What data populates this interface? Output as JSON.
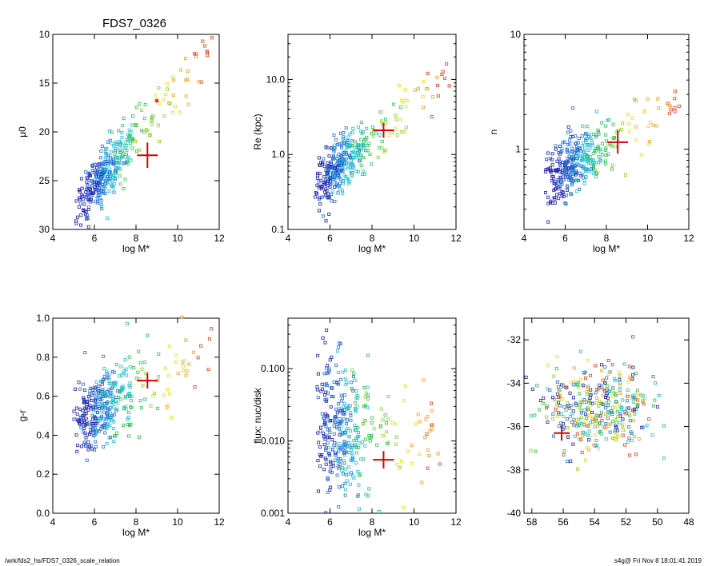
{
  "title": "FDS7_0326",
  "footer": {
    "left": "/wrk/fds2_hs/FDS7_0326_scale_relation",
    "right": "s4g@  Fri Nov  8 18:01:41 2019"
  },
  "colors": {
    "marker": "#dd0000",
    "palette": [
      "#2020b0",
      "#2a6fd6",
      "#20c0d0",
      "#30c050",
      "#90d020",
      "#e0e020",
      "#f0a020",
      "#e04020"
    ]
  },
  "chart_data": [
    {
      "type": "scatter",
      "xlabel": "log M*",
      "ylabel": "μ0",
      "xlim": [
        4,
        12
      ],
      "ylim": [
        30,
        10
      ],
      "yscale": "linear",
      "xticks": [
        4,
        6,
        8,
        10,
        12
      ],
      "yticks": [
        10,
        15,
        20,
        25,
        30
      ],
      "trend": {
        "slope": -2.5,
        "x0": 6.5,
        "y0": 24.2,
        "spread": 1.3
      },
      "x_range": [
        5.1,
        11.7
      ],
      "marker": {
        "x": 8.55,
        "y": 22.4,
        "xerr": 0.5,
        "yerr": 1.3
      },
      "extra_points": [
        {
          "x": 9.0,
          "y": 16.8,
          "color": "#e04020"
        }
      ]
    },
    {
      "type": "scatter",
      "xlabel": "log M*",
      "ylabel": "Re (kpc)",
      "xlim": [
        4,
        12
      ],
      "ylim": [
        0.1,
        40
      ],
      "yscale": "log",
      "xticks": [
        4,
        6,
        8,
        10,
        12
      ],
      "yticks": [
        0.1,
        1.0,
        10.0
      ],
      "trend": {
        "slope": 0.24,
        "x0": 6.5,
        "y0": 0.7,
        "spread": 0.18
      },
      "x_range": [
        5.3,
        11.7
      ],
      "marker": {
        "x": 8.55,
        "y": 2.1,
        "xerr": 0.5,
        "yerr_log": 0.1
      }
    },
    {
      "type": "scatter",
      "xlabel": "log M*",
      "ylabel": "n",
      "xlim": [
        4,
        12
      ],
      "ylim": [
        0.2,
        10
      ],
      "yscale": "log",
      "xticks": [
        4,
        6,
        8,
        10,
        12
      ],
      "yticks": [
        1,
        10
      ],
      "trend": {
        "slope": 0.11,
        "x0": 6.5,
        "y0": 0.75,
        "spread": 0.13
      },
      "x_range": [
        5.0,
        11.7
      ],
      "marker": {
        "x": 8.55,
        "y": 1.15,
        "xerr": 0.5,
        "yerr_log": 0.1
      }
    },
    {
      "type": "scatter",
      "xlabel": "log M*",
      "ylabel": "g-r",
      "xlim": [
        4,
        12
      ],
      "ylim": [
        0.0,
        1.0
      ],
      "yscale": "linear",
      "xticks": [
        4,
        6,
        8,
        10,
        12
      ],
      "yticks": [
        0.0,
        0.2,
        0.4,
        0.6,
        0.8,
        1.0
      ],
      "trend": {
        "slope": 0.06,
        "x0": 6.5,
        "y0": 0.55,
        "spread": 0.1
      },
      "x_range": [
        5.0,
        11.7
      ],
      "marker": {
        "x": 8.55,
        "y": 0.68,
        "xerr": 0.5,
        "yerr": 0.04
      }
    },
    {
      "type": "scatter",
      "xlabel": "log M*",
      "ylabel": "flux: nuc/disk",
      "xlim": [
        4,
        12
      ],
      "ylim": [
        0.001,
        0.5
      ],
      "yscale": "log",
      "xticks": [
        4,
        6,
        8,
        10,
        12
      ],
      "yticks": [
        0.001,
        0.01,
        0.1
      ],
      "tick_labels_y": [
        "0.001",
        "0.010",
        "0.100"
      ],
      "trend": {
        "slope": -0.1,
        "x0": 6.5,
        "y0": 0.015,
        "spread": 0.45
      },
      "x_range": [
        5.3,
        11.3
      ],
      "marker": {
        "x": 8.55,
        "y": 0.0055,
        "xerr": 0.5,
        "yerr_log": 0.12
      }
    },
    {
      "type": "scatter",
      "xlabel": "",
      "ylabel": "",
      "xlim": [
        58.5,
        48
      ],
      "ylim": [
        -40,
        -31
      ],
      "yscale": "linear",
      "xticks": [
        58,
        56,
        54,
        52,
        50,
        48
      ],
      "yticks": [
        -40,
        -38,
        -36,
        -34,
        -32
      ],
      "cloud": {
        "cx": 53.8,
        "cy": -35.2,
        "sx": 1.8,
        "sy": 1.1
      },
      "marker": {
        "x": 56.1,
        "y": -36.3,
        "xerr": 0.5,
        "yerr": 0.35
      }
    }
  ]
}
